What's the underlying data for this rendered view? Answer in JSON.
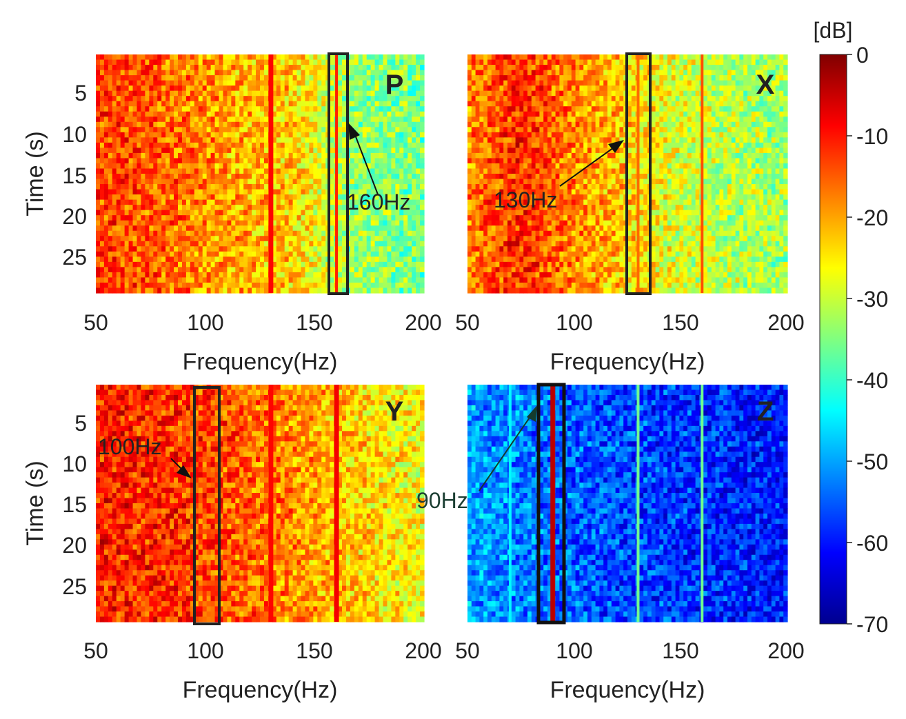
{
  "chart_data": {
    "type": "heatmap",
    "colorbar": {
      "unit_label": "[dB]",
      "range": [
        -70,
        0
      ],
      "ticks": [
        "0",
        "-10",
        "-20",
        "-30",
        "-40",
        "-50",
        "-60",
        "-70"
      ],
      "colormap": "jet",
      "colors": [
        "#00008f",
        "#0000ff",
        "#0080ff",
        "#00ffff",
        "#80ff80",
        "#ffff00",
        "#ff8000",
        "#ff0000",
        "#800000"
      ]
    },
    "panels": [
      {
        "label": "P",
        "xlabel": "Frequency(Hz)",
        "ylabel": "Time (s)",
        "xlim": [
          50,
          200
        ],
        "ylim": [
          0,
          29
        ],
        "xticks": [
          "50",
          "100",
          "150",
          "200"
        ],
        "yticks": [
          "5",
          "10",
          "15",
          "20",
          "25"
        ],
        "highlight_hz": [
          157,
          165
        ],
        "annotation": {
          "text": "160Hz",
          "target_hz": 161,
          "target_s": 8.5
        },
        "background_db": [
          [
            50,
            -13
          ],
          [
            80,
            -15
          ],
          [
            110,
            -20
          ],
          [
            140,
            -23
          ],
          [
            165,
            -33
          ],
          [
            200,
            -36
          ]
        ],
        "lines": [
          {
            "hz": 130,
            "db": -9
          },
          {
            "hz": 160,
            "db": -11
          }
        ]
      },
      {
        "label": "X",
        "xlabel": "Frequency(Hz)",
        "ylabel": "",
        "xlim": [
          50,
          200
        ],
        "ylim": [
          0,
          29
        ],
        "xticks": [
          "50",
          "100",
          "150",
          "200"
        ],
        "yticks": [],
        "highlight_hz": [
          125,
          136
        ],
        "annotation": {
          "text": "130Hz",
          "target_hz": 126,
          "target_s": 10.5
        },
        "background_db": [
          [
            50,
            -18
          ],
          [
            75,
            -11
          ],
          [
            95,
            -17
          ],
          [
            120,
            -22
          ],
          [
            150,
            -29
          ],
          [
            200,
            -33
          ]
        ],
        "lines": [
          {
            "hz": 130,
            "db": -16
          },
          {
            "hz": 160,
            "db": -14
          }
        ]
      },
      {
        "label": "Y",
        "xlabel": "Frequency(Hz)",
        "ylabel": "Time (s)",
        "xlim": [
          50,
          200
        ],
        "ylim": [
          0,
          29
        ],
        "xticks": [
          "50",
          "100",
          "150",
          "200"
        ],
        "yticks": [
          "5",
          "10",
          "15",
          "20",
          "25"
        ],
        "highlight_hz": [
          97,
          108
        ],
        "annotation": {
          "text": "100Hz",
          "target_hz": 98,
          "target_s": 12
        },
        "background_db": [
          [
            50,
            -11
          ],
          [
            90,
            -12
          ],
          [
            130,
            -17
          ],
          [
            170,
            -23
          ],
          [
            200,
            -27
          ]
        ],
        "lines": [
          {
            "hz": 130,
            "db": -9
          },
          {
            "hz": 160,
            "db": -8
          }
        ]
      },
      {
        "label": "Z",
        "xlabel": "Frequency(Hz)",
        "ylabel": "",
        "xlim": [
          50,
          200
        ],
        "ylim": [
          0,
          29
        ],
        "xticks": [
          "50",
          "100",
          "150",
          "200"
        ],
        "yticks": [],
        "highlight_hz": [
          85,
          97
        ],
        "annotation": {
          "text": "90Hz",
          "target_hz": 84,
          "target_s": 2.5
        },
        "background_db": [
          [
            50,
            -50
          ],
          [
            100,
            -55
          ],
          [
            150,
            -58
          ],
          [
            200,
            -60
          ]
        ],
        "lines": [
          {
            "hz": 70,
            "db": -44
          },
          {
            "hz": 90,
            "db": -4
          },
          {
            "hz": 130,
            "db": -36
          },
          {
            "hz": 160,
            "db": -36
          }
        ]
      }
    ]
  }
}
